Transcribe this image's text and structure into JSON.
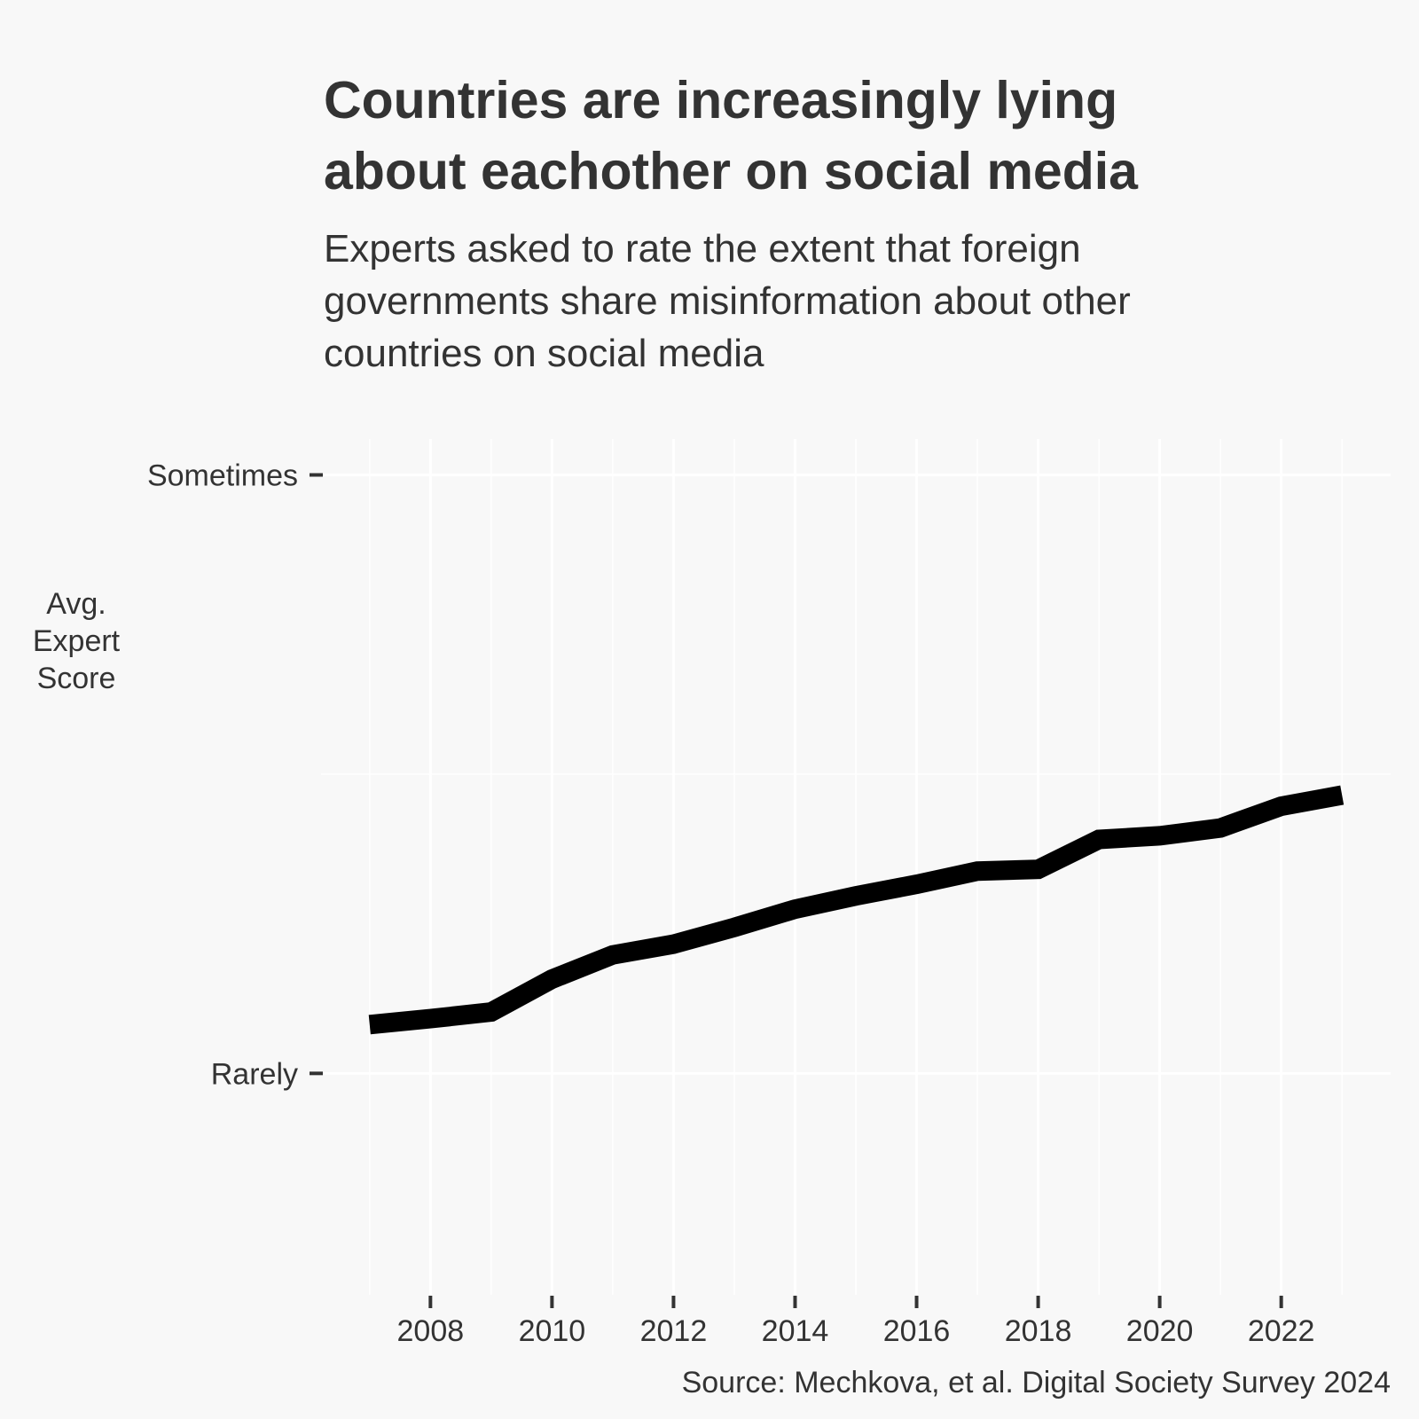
{
  "chart_data": {
    "type": "line",
    "title_lines": [
      "Countries are increasingly lying",
      "about eachother on social media"
    ],
    "subtitle_lines": [
      "Experts asked to rate the extent that foreign",
      "governments share misinformation about other",
      "countries on social media"
    ],
    "ylabel_lines": [
      "Avg.",
      "Expert",
      "Score"
    ],
    "caption": "Source: Mechkova, et al. Digital Society Survey 2024",
    "x": [
      2007,
      2008,
      2009,
      2010,
      2011,
      2012,
      2013,
      2014,
      2015,
      2016,
      2017,
      2018,
      2019,
      2020,
      2021,
      2022,
      2023
    ],
    "y": [
      0.163,
      0.183,
      0.205,
      0.315,
      0.396,
      0.432,
      0.488,
      0.549,
      0.593,
      0.632,
      0.676,
      0.682,
      0.782,
      0.794,
      0.82,
      0.893,
      0.93
    ],
    "x_ticks": [
      2008,
      2010,
      2012,
      2014,
      2016,
      2018,
      2020,
      2022
    ],
    "y_ticks": [
      {
        "value": 0,
        "label": "Rarely"
      },
      {
        "value": 2,
        "label": "Sometimes"
      }
    ],
    "xlim": [
      2006.2,
      2023.8
    ],
    "ylim": [
      -0.74,
      2.12
    ],
    "grid": true,
    "line_color": "#000000",
    "background_color": "#f8f8f8",
    "grid_color": "#ffffff",
    "text_color": "#333333"
  }
}
